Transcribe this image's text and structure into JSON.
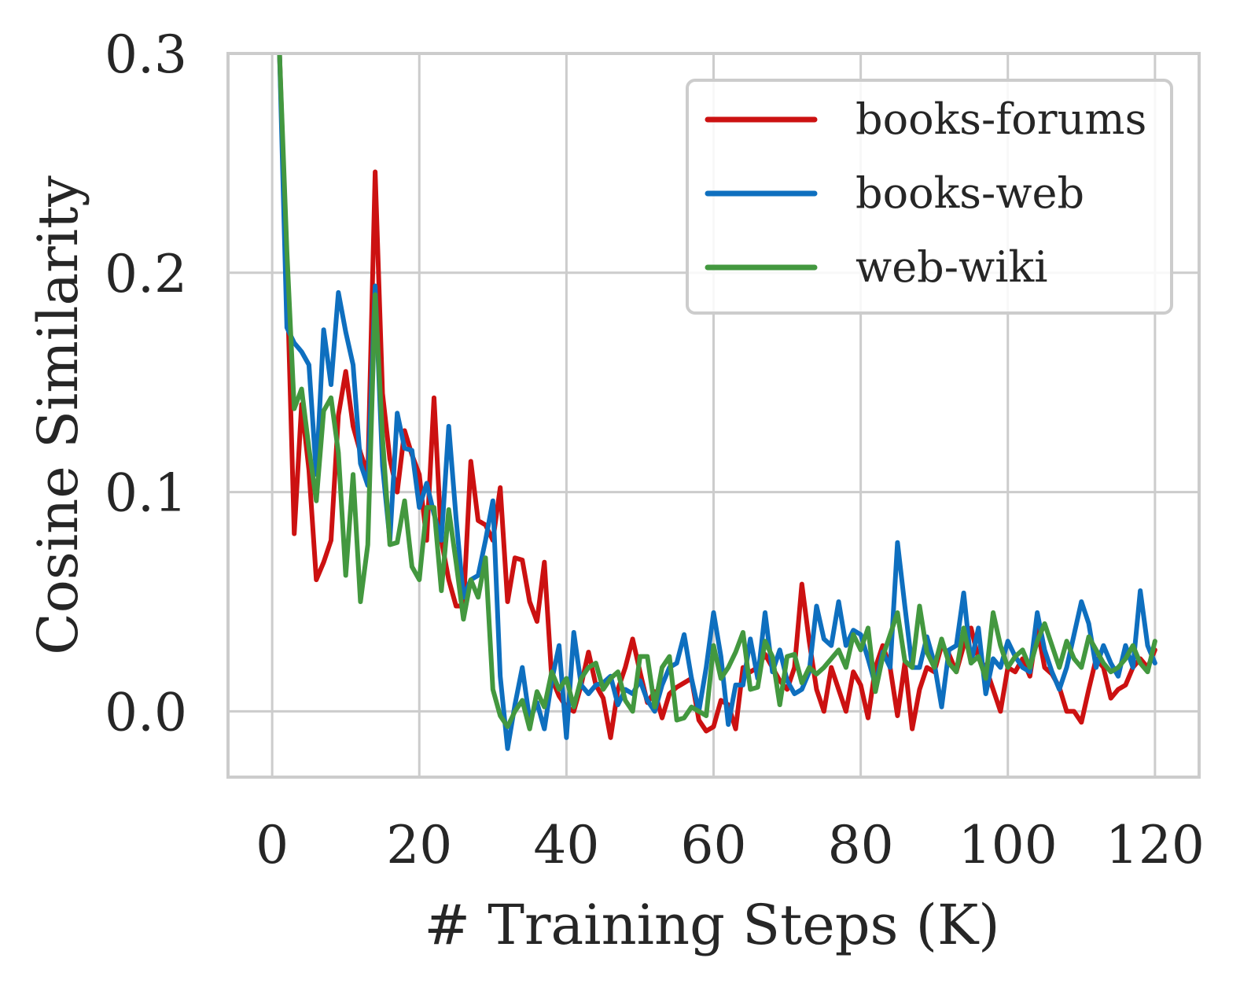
{
  "chart_data": {
    "type": "line",
    "title": "",
    "xlabel": "# Training Steps (K)",
    "ylabel": "Cosine Similarity",
    "xlim": [
      -6,
      126
    ],
    "ylim": [
      -0.03,
      0.3
    ],
    "xticks": [
      0,
      20,
      40,
      60,
      80,
      100,
      120
    ],
    "xtick_labels": [
      "0",
      "20",
      "40",
      "60",
      "80",
      "100",
      "120"
    ],
    "yticks": [
      0.0,
      0.1,
      0.2,
      0.3
    ],
    "ytick_labels": [
      "0.0",
      "0.1",
      "0.2",
      "0.3"
    ],
    "grid": true,
    "legend_position": "top-right",
    "x": [
      1,
      2,
      3,
      4,
      5,
      6,
      7,
      8,
      9,
      10,
      11,
      12,
      13,
      14,
      15,
      16,
      17,
      18,
      19,
      20,
      21,
      22,
      23,
      24,
      25,
      26,
      27,
      28,
      29,
      30,
      31,
      32,
      33,
      34,
      35,
      36,
      37,
      38,
      39,
      40,
      41,
      42,
      43,
      44,
      45,
      46,
      47,
      48,
      49,
      50,
      51,
      52,
      53,
      54,
      55,
      56,
      57,
      58,
      59,
      60,
      61,
      62,
      63,
      64,
      65,
      66,
      67,
      68,
      69,
      70,
      71,
      72,
      73,
      74,
      75,
      76,
      77,
      78,
      79,
      80,
      81,
      82,
      83,
      84,
      85,
      86,
      87,
      88,
      89,
      90,
      91,
      92,
      93,
      94,
      95,
      96,
      97,
      98,
      99,
      100,
      101,
      102,
      103,
      104,
      105,
      106,
      107,
      108,
      109,
      110,
      111,
      112,
      113,
      114,
      115,
      116,
      117,
      118,
      119,
      120
    ],
    "series": [
      {
        "name": "books-forums",
        "color": "#cc1111",
        "values": [
          0.3,
          0.2,
          0.081,
          0.14,
          0.11,
          0.06,
          0.068,
          0.078,
          0.135,
          0.155,
          0.13,
          0.118,
          0.108,
          0.246,
          0.145,
          0.115,
          0.1,
          0.128,
          0.117,
          0.108,
          0.078,
          0.143,
          0.078,
          0.06,
          0.048,
          0.048,
          0.114,
          0.087,
          0.085,
          0.078,
          0.102,
          0.05,
          0.07,
          0.069,
          0.05,
          0.041,
          0.068,
          0.015,
          0.007,
          0.002,
          0.0,
          0.012,
          0.027,
          0.012,
          0.006,
          -0.012,
          0.01,
          0.02,
          0.033,
          0.018,
          0.004,
          0.009,
          -0.003,
          0.008,
          0.011,
          0.013,
          0.015,
          -0.004,
          -0.009,
          -0.007,
          0.005,
          0.003,
          -0.008,
          0.02,
          0.018,
          0.02,
          0.026,
          0.02,
          0.014,
          0.01,
          0.02,
          0.058,
          0.032,
          0.01,
          0.0,
          0.02,
          0.01,
          0.0,
          0.018,
          0.012,
          -0.003,
          0.02,
          0.03,
          0.02,
          -0.002,
          0.022,
          -0.008,
          0.01,
          0.02,
          0.018,
          0.03,
          0.026,
          0.018,
          0.03,
          0.038,
          0.024,
          0.02,
          0.01,
          0.0,
          0.02,
          0.018,
          0.024,
          0.016,
          0.038,
          0.02,
          0.017,
          0.011,
          0.0,
          0.0,
          -0.005,
          0.01,
          0.024,
          0.02,
          0.006,
          0.01,
          0.012,
          0.02,
          0.024,
          0.02,
          0.028
        ],
        "note_values_x_start": 1
      },
      {
        "name": "books-web",
        "color": "#0e6fbf",
        "values": [
          0.3,
          0.175,
          0.168,
          0.164,
          0.158,
          0.108,
          0.174,
          0.149,
          0.191,
          0.173,
          0.158,
          0.113,
          0.103,
          0.194,
          0.112,
          0.078,
          0.136,
          0.12,
          0.119,
          0.093,
          0.104,
          0.09,
          0.078,
          0.13,
          0.088,
          0.052,
          0.06,
          0.062,
          0.078,
          0.096,
          0.016,
          -0.017,
          0.003,
          0.02,
          -0.004,
          0.004,
          -0.008,
          0.014,
          0.03,
          -0.012,
          0.036,
          0.012,
          0.008,
          0.012,
          0.013,
          0.016,
          0.003,
          0.01,
          0.008,
          0.014,
          0.005,
          0.0,
          0.012,
          0.02,
          0.022,
          0.035,
          0.015,
          0.0,
          0.02,
          0.045,
          0.025,
          -0.006,
          0.012,
          0.012,
          0.033,
          0.015,
          0.045,
          0.018,
          0.028,
          0.014,
          0.008,
          0.01,
          0.018,
          0.048,
          0.033,
          0.03,
          0.05,
          0.03,
          0.037,
          0.035,
          0.024,
          0.012,
          0.027,
          0.02,
          0.077,
          0.048,
          0.02,
          0.02,
          0.034,
          0.022,
          0.002,
          0.028,
          0.03,
          0.054,
          0.022,
          0.038,
          0.008,
          0.024,
          0.02,
          0.032,
          0.025,
          0.02,
          0.018,
          0.045,
          0.028,
          0.018,
          0.01,
          0.02,
          0.035,
          0.05,
          0.04,
          0.02,
          0.03,
          0.022,
          0.016,
          0.03,
          0.02,
          0.055,
          0.03,
          0.022
        ],
        "note_values_x_start": 1
      },
      {
        "name": "web-wiki",
        "color": "#43983f",
        "values": [
          0.3,
          0.21,
          0.138,
          0.147,
          0.12,
          0.096,
          0.137,
          0.143,
          0.118,
          0.062,
          0.108,
          0.05,
          0.076,
          0.19,
          0.125,
          0.076,
          0.077,
          0.096,
          0.066,
          0.06,
          0.093,
          0.093,
          0.055,
          0.092,
          0.068,
          0.042,
          0.06,
          0.052,
          0.07,
          0.01,
          -0.002,
          -0.007,
          0.0,
          0.005,
          -0.008,
          0.009,
          0.002,
          0.018,
          0.01,
          0.015,
          0.002,
          0.015,
          0.02,
          0.022,
          0.01,
          0.015,
          0.018,
          0.005,
          0.0,
          0.025,
          0.025,
          0.002,
          0.02,
          0.025,
          -0.004,
          -0.003,
          0.002,
          0.0,
          -0.002,
          0.03,
          0.015,
          0.02,
          0.027,
          0.036,
          0.01,
          0.011,
          0.032,
          0.025,
          0.003,
          0.025,
          0.026,
          0.013,
          0.02,
          0.017,
          0.02,
          0.024,
          0.028,
          0.02,
          0.035,
          0.028,
          0.038,
          0.009,
          0.025,
          0.035,
          0.045,
          0.023,
          0.02,
          0.048,
          0.027,
          0.02,
          0.033,
          0.022,
          0.018,
          0.038,
          0.022,
          0.025,
          0.015,
          0.045,
          0.03,
          0.02,
          0.025,
          0.028,
          0.02,
          0.032,
          0.04,
          0.03,
          0.02,
          0.032,
          0.024,
          0.02,
          0.034,
          0.028,
          0.022,
          0.018,
          0.02,
          0.024,
          0.03,
          0.022,
          0.018,
          0.032
        ],
        "note_values_x_start": 1
      }
    ]
  }
}
